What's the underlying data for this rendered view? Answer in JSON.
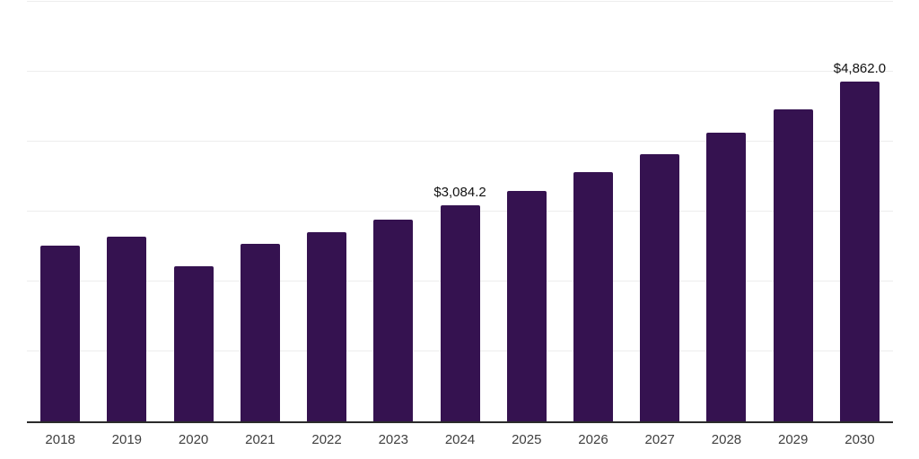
{
  "chart_data": {
    "type": "bar",
    "title": "",
    "xlabel": "",
    "ylabel": "",
    "categories": [
      "2018",
      "2019",
      "2020",
      "2021",
      "2022",
      "2023",
      "2024",
      "2025",
      "2026",
      "2027",
      "2028",
      "2029",
      "2030"
    ],
    "values": [
      2510,
      2645,
      2220,
      2540,
      2710,
      2880,
      3084.2,
      3290,
      3560,
      3825,
      4130,
      4465,
      4862
    ],
    "annotations": [
      {
        "category": "2024",
        "text": "$3,084.2"
      },
      {
        "category": "2030",
        "text": "$4,862.0"
      }
    ],
    "ylim": [
      0,
      6000
    ],
    "gridline_interval": 1000,
    "grid": "horizontal",
    "legend": "none",
    "colors": {
      "bar": "#351250",
      "axis": "#2b2b2b",
      "gridline": "#ededed",
      "tick_label": "#404040",
      "annotation": "#111111",
      "background": "#ffffff"
    }
  }
}
